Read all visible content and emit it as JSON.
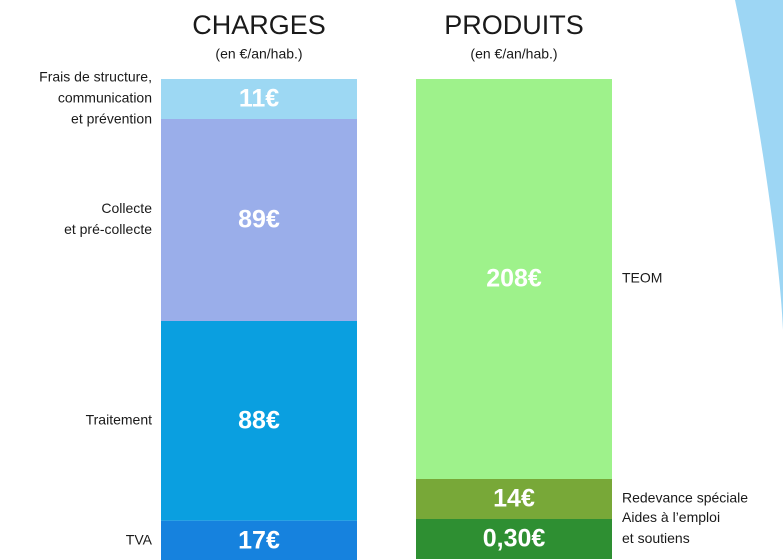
{
  "chart_data": [
    {
      "type": "bar",
      "title": "CHARGES",
      "subtitle": "(en €/an/hab.)",
      "categories": [
        [
          "Frais de structure,",
          "communication",
          "et prévention"
        ],
        [
          "Collecte",
          "et pré-collecte"
        ],
        [
          "Traitement"
        ],
        [
          "TVA"
        ]
      ],
      "values": [
        11,
        89,
        88,
        17
      ],
      "value_labels": [
        "11€",
        "89€",
        "88€",
        "17€"
      ],
      "colors": [
        "#9dd8f3",
        "#9aaeea",
        "#0a9fe0",
        "#1682de"
      ],
      "label_side": "left"
    },
    {
      "type": "bar",
      "title": "PRODUITS",
      "subtitle": "(en €/an/hab.)",
      "categories": [
        [
          "TEOM"
        ],
        [
          "Redevance spéciale"
        ],
        [
          "Aides à l’emploi",
          "et soutiens"
        ]
      ],
      "values": [
        208,
        14,
        0.3
      ],
      "value_labels": [
        "208€",
        "14€",
        "0,30€"
      ],
      "colors": [
        "#9ef28b",
        "#78a838",
        "#2e8f32"
      ],
      "label_side": "right"
    }
  ]
}
